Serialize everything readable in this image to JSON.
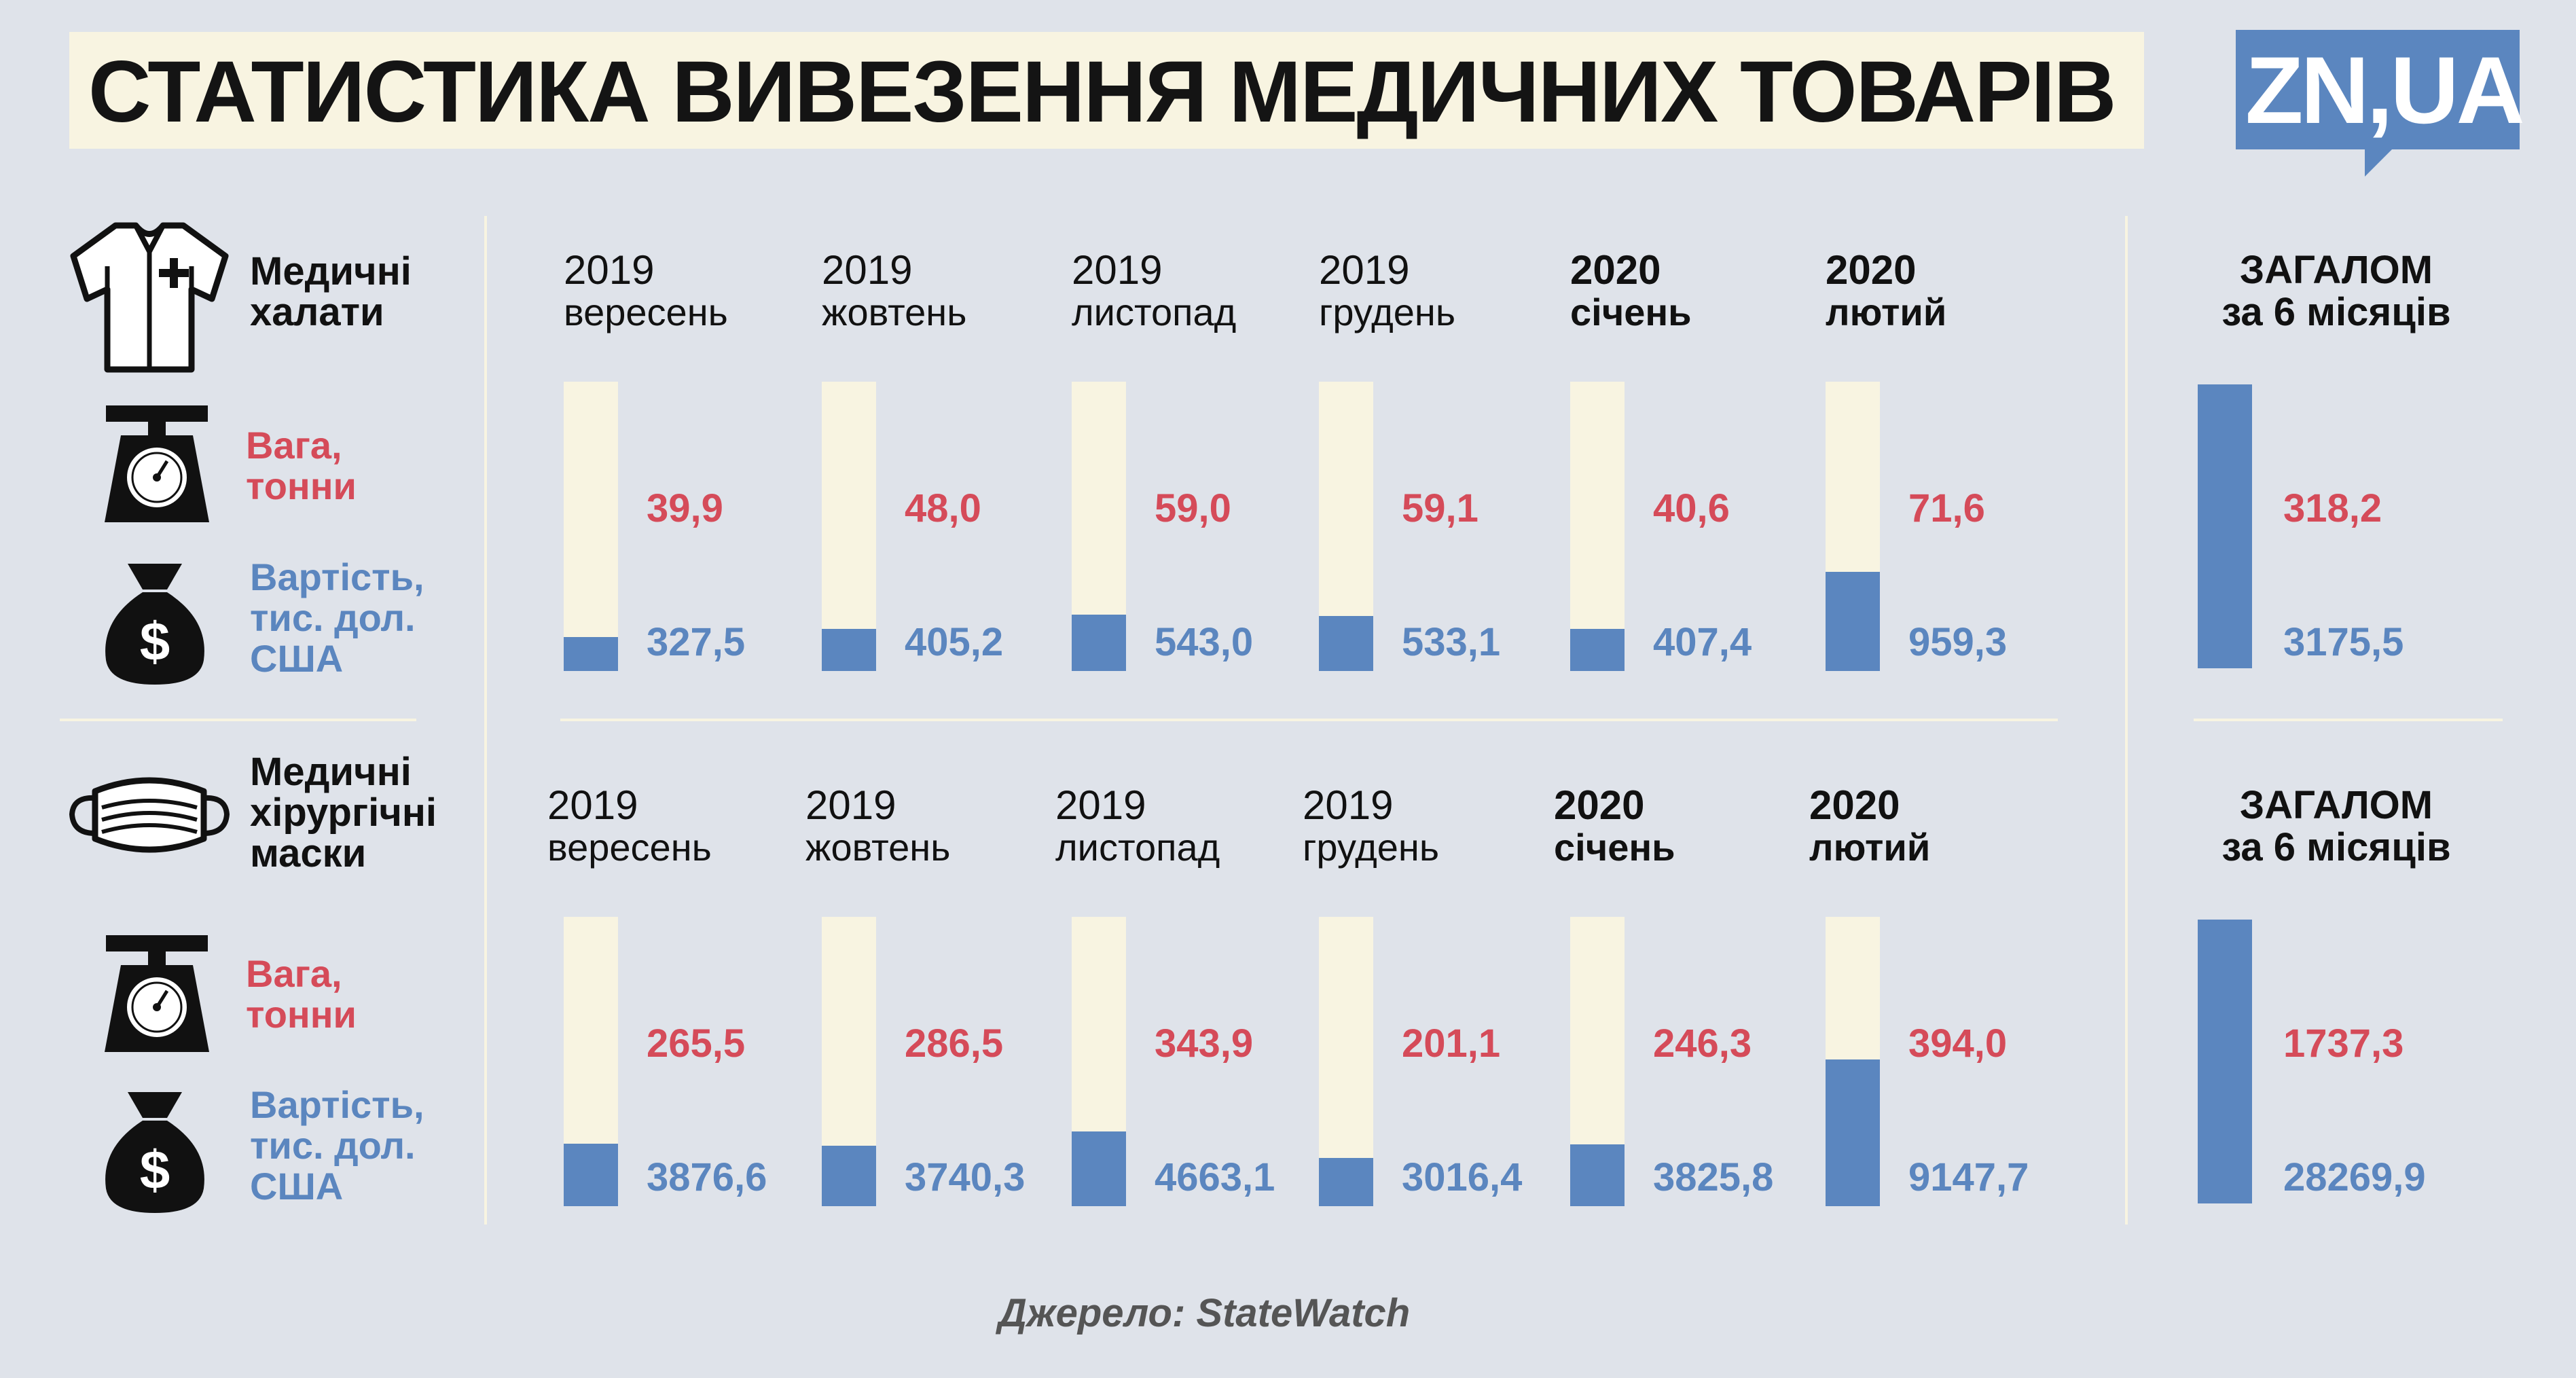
{
  "title": "СТАТИСТИКА ВИВЕЗЕННЯ МЕДИЧНИХ ТОВАРІВ",
  "logo": "ZN,UA",
  "source": "Джерело: StateWatch",
  "labels": {
    "weight": [
      "Вага,",
      "тонни"
    ],
    "value": [
      "Вартість,",
      "тис. дол.",
      "США"
    ]
  },
  "total_header": [
    "ЗАГАЛОМ",
    "за 6 місяців"
  ],
  "periods": [
    {
      "year": "2019",
      "month": "вересень",
      "bold": false
    },
    {
      "year": "2019",
      "month": "жовтень",
      "bold": false
    },
    {
      "year": "2019",
      "month": "листопад",
      "bold": false
    },
    {
      "year": "2019",
      "month": "грудень",
      "bold": false
    },
    {
      "year": "2020",
      "month": "січень",
      "bold": true
    },
    {
      "year": "2020",
      "month": "лютий",
      "bold": true
    }
  ],
  "colors": {
    "weight": "#d54b59",
    "value": "#5b86bf",
    "bar_bg": "#f8f4e1",
    "background": "#dfe3ea"
  },
  "icons": [
    "shirt-icon",
    "scale-icon",
    "money-bag-icon",
    "mask-icon"
  ],
  "chart_data": [
    {
      "type": "bar",
      "title": [
        "Медичні",
        "халати"
      ],
      "categories": [
        "2019 вересень",
        "2019 жовтень",
        "2019 листопад",
        "2019 грудень",
        "2020 січень",
        "2020 лютий"
      ],
      "series": [
        {
          "name": "Вага, тонни",
          "values": [
            39.9,
            48.0,
            59.0,
            59.1,
            40.6,
            71.6
          ],
          "labels": [
            "39,9",
            "48,0",
            "59,0",
            "59,1",
            "40,6",
            "71,6"
          ]
        },
        {
          "name": "Вартість, тис. дол. США",
          "values": [
            327.5,
            405.2,
            543.0,
            533.1,
            407.4,
            959.3
          ],
          "labels": [
            "327,5",
            "405,2",
            "543,0",
            "533,1",
            "407,4",
            "959,3"
          ]
        }
      ],
      "total": {
        "weight": "318,2",
        "value": "3175,5",
        "weight_value": 318.2,
        "value_value": 3175.5
      }
    },
    {
      "type": "bar",
      "title": [
        "Медичні",
        "хірургічні",
        "маски"
      ],
      "categories": [
        "2019 вересень",
        "2019 жовтень",
        "2019 листопад",
        "2019 грудень",
        "2020 січень",
        "2020 лютий"
      ],
      "series": [
        {
          "name": "Вага, тонни",
          "values": [
            265.5,
            286.5,
            343.9,
            201.1,
            246.3,
            394.0
          ],
          "labels": [
            "265,5",
            "286,5",
            "343,9",
            "201,1",
            "246,3",
            "394,0"
          ]
        },
        {
          "name": "Вартість, тис. дол. США",
          "values": [
            3876.6,
            3740.3,
            4663.1,
            3016.4,
            3825.8,
            9147.7
          ],
          "labels": [
            "3876,6",
            "3740,3",
            "4663,1",
            "3016,4",
            "3825,8",
            "9147,7"
          ]
        }
      ],
      "total": {
        "weight": "1737,3",
        "value": "28269,9",
        "weight_value": 1737.3,
        "value_value": 28269.9
      }
    }
  ]
}
